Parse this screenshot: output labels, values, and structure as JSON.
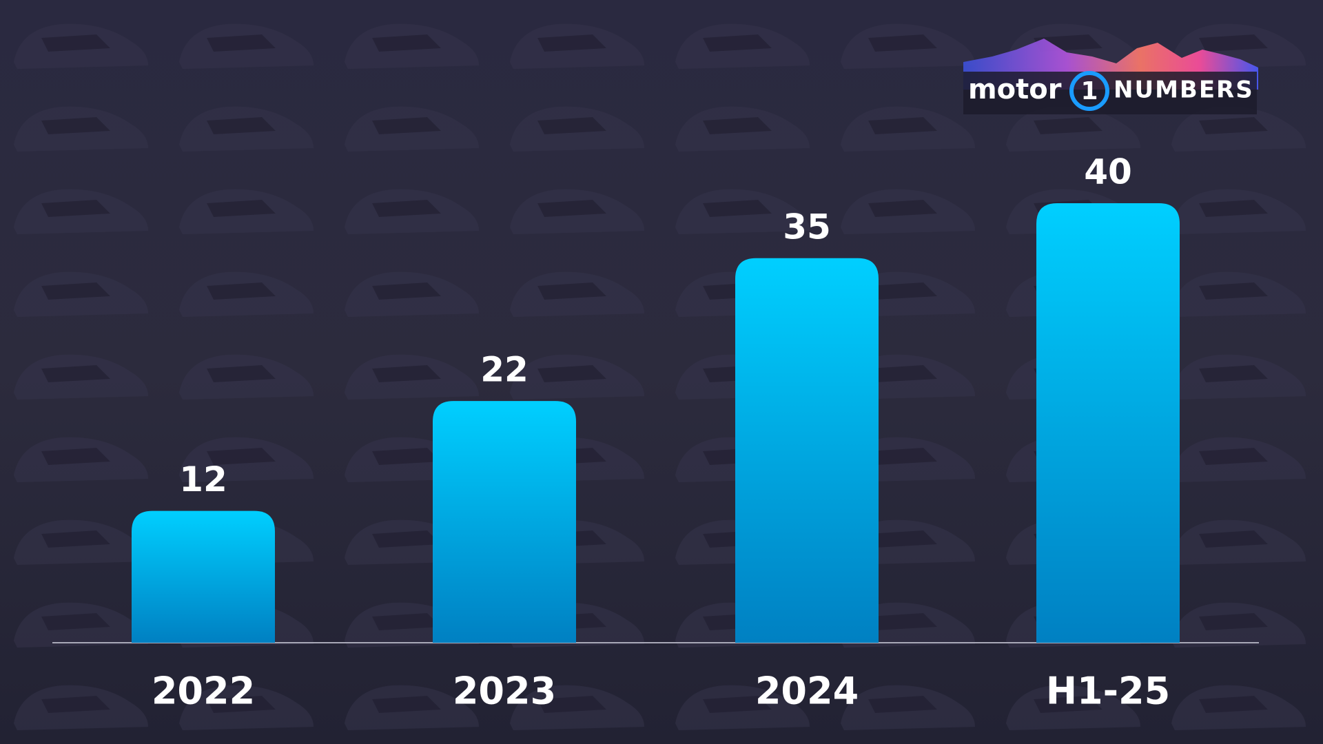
{
  "chart_data": {
    "type": "bar",
    "categories": [
      "2022",
      "2023",
      "2024",
      "H1-25"
    ],
    "values": [
      12,
      22,
      35,
      40
    ],
    "color": "#00c4f5"
  },
  "logo": {
    "brand": "motor",
    "number": "1",
    "suffix": "NUMBERS"
  }
}
